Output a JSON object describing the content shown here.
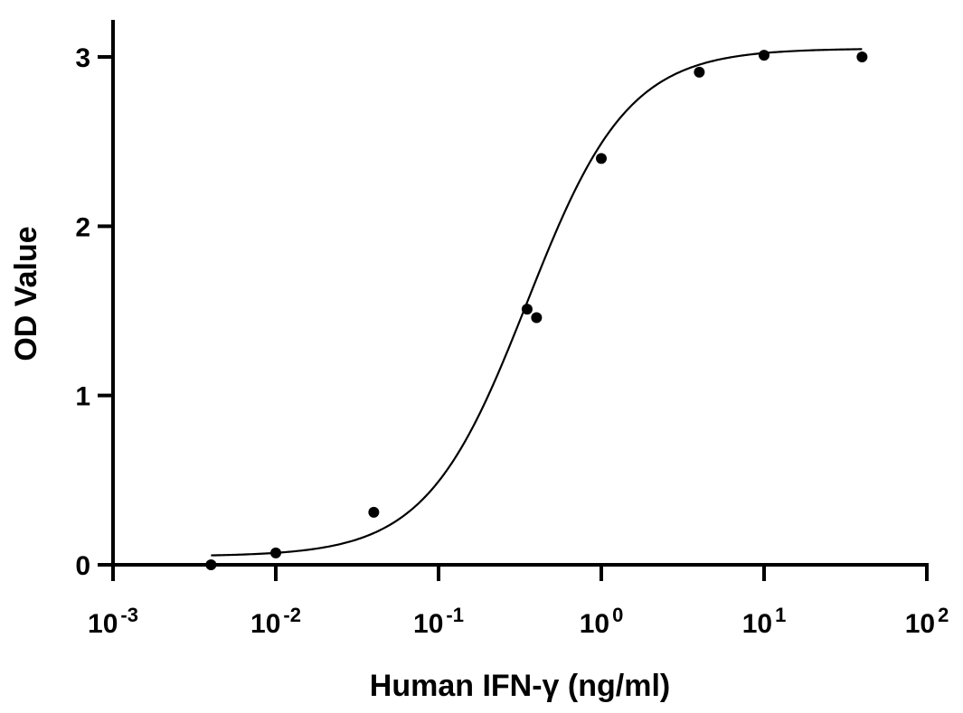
{
  "chart_data": {
    "type": "scatter",
    "xlabel": "Human IFN-γ (ng/ml)",
    "ylabel": "OD Value",
    "x_scale": "log10",
    "xlim": [
      0.001,
      100
    ],
    "ylim": [
      0,
      3
    ],
    "x_ticks": [
      {
        "base": "10",
        "exponent": "-3",
        "value": 0.001
      },
      {
        "base": "10",
        "exponent": "-2",
        "value": 0.01
      },
      {
        "base": "10",
        "exponent": "-1",
        "value": 0.1
      },
      {
        "base": "10",
        "exponent": "0",
        "value": 1
      },
      {
        "base": "10",
        "exponent": "1",
        "value": 10
      },
      {
        "base": "10",
        "exponent": "2",
        "value": 100
      }
    ],
    "y_ticks": [
      {
        "label": "0",
        "value": 0
      },
      {
        "label": "1",
        "value": 1
      },
      {
        "label": "2",
        "value": 2
      },
      {
        "label": "3",
        "value": 3
      }
    ],
    "series": [
      {
        "points": [
          {
            "x": 0.004,
            "y": 0.0
          },
          {
            "x": 0.01,
            "y": 0.07
          },
          {
            "x": 0.04,
            "y": 0.31
          },
          {
            "x": 0.35,
            "y": 1.51
          },
          {
            "x": 0.4,
            "y": 1.46
          },
          {
            "x": 1.0,
            "y": 2.4
          },
          {
            "x": 4.0,
            "y": 2.91
          },
          {
            "x": 10.0,
            "y": 3.01
          },
          {
            "x": 40.0,
            "y": 3.0
          }
        ],
        "fit": {
          "model": "4PL",
          "bottom": 0.05,
          "top": 3.05,
          "ec50": 0.35,
          "hill": 1.4,
          "x_range": [
            0.004,
            40
          ]
        }
      }
    ],
    "grid": false,
    "legend": "none"
  }
}
